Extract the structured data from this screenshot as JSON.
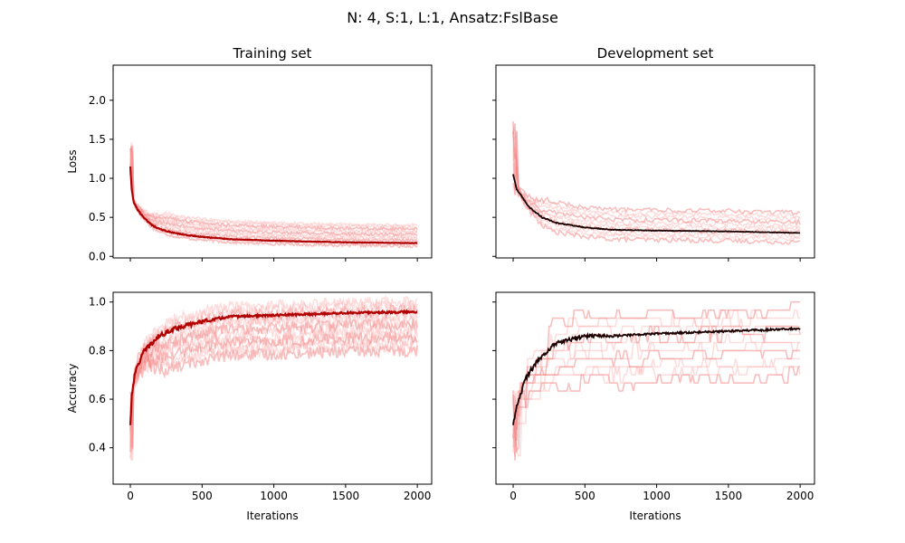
{
  "suptitle": "N: 4, S:1, L:1, Ansatz:FslBase",
  "colors": {
    "run_light": "#f8a0a0",
    "run_medium": "#f07070",
    "mean_train": "#b00000",
    "mean_dev": "#1a0000",
    "frame": "#000000"
  },
  "chart_data": [
    {
      "id": "train-loss",
      "type": "line",
      "title": "Training set",
      "xlabel": "",
      "ylabel": "Loss",
      "xlim": [
        -120,
        2100
      ],
      "ylim": [
        -0.02,
        2.45
      ],
      "xticks": [
        0,
        500,
        1000,
        1500,
        2000
      ],
      "show_xticklabels": false,
      "yticks": [
        0.0,
        0.5,
        1.0,
        1.5,
        2.0
      ],
      "ytick_labels": [
        "0.0",
        "0.5",
        "1.0",
        "1.5",
        "2.0"
      ],
      "runs": 12,
      "runs_end_spread": [
        0.13,
        0.4
      ],
      "mean": {
        "x": [
          0,
          10,
          25,
          50,
          100,
          150,
          200,
          300,
          400,
          500,
          700,
          1000,
          1500,
          2000
        ],
        "y": [
          1.15,
          0.85,
          0.68,
          0.6,
          0.48,
          0.4,
          0.35,
          0.3,
          0.27,
          0.25,
          0.22,
          0.2,
          0.18,
          0.17
        ]
      }
    },
    {
      "id": "dev-loss",
      "type": "line",
      "title": "Development set",
      "xlabel": "",
      "ylabel": "",
      "xlim": [
        -120,
        2100
      ],
      "ylim": [
        -0.02,
        2.45
      ],
      "xticks": [
        0,
        500,
        1000,
        1500,
        2000
      ],
      "show_xticklabels": false,
      "yticks": [
        0.0,
        0.5,
        1.0,
        1.5,
        2.0
      ],
      "ytick_labels": [
        "",
        "",
        "",
        "",
        ""
      ],
      "runs": 10,
      "runs_end_spread": [
        0.18,
        0.56
      ],
      "mean": {
        "x": [
          0,
          25,
          50,
          100,
          200,
          300,
          500,
          700,
          1000,
          1500,
          2000
        ],
        "y": [
          1.05,
          0.85,
          0.8,
          0.65,
          0.5,
          0.43,
          0.37,
          0.34,
          0.33,
          0.32,
          0.3
        ]
      }
    },
    {
      "id": "train-acc",
      "type": "line",
      "title": "",
      "xlabel": "Iterations",
      "ylabel": "Accuracy",
      "xlim": [
        -120,
        2100
      ],
      "ylim": [
        0.25,
        1.04
      ],
      "xticks": [
        0,
        500,
        1000,
        1500,
        2000
      ],
      "xtick_labels": [
        "0",
        "500",
        "1000",
        "1500",
        "2000"
      ],
      "show_xticklabels": true,
      "yticks": [
        0.4,
        0.6,
        0.8,
        1.0
      ],
      "ytick_labels": [
        "0.4",
        "0.6",
        "0.8",
        "1.0"
      ],
      "runs": 12,
      "runs_end_spread": [
        0.8,
        1.0
      ],
      "mean": {
        "x": [
          0,
          10,
          25,
          50,
          100,
          200,
          300,
          500,
          700,
          1000,
          1500,
          2000
        ],
        "y": [
          0.49,
          0.62,
          0.68,
          0.74,
          0.8,
          0.86,
          0.89,
          0.92,
          0.94,
          0.945,
          0.955,
          0.96
        ]
      }
    },
    {
      "id": "dev-acc",
      "type": "line",
      "title": "",
      "xlabel": "Iterations",
      "ylabel": "",
      "xlim": [
        -120,
        2100
      ],
      "ylim": [
        0.25,
        1.04
      ],
      "xticks": [
        0,
        500,
        1000,
        1500,
        2000
      ],
      "xtick_labels": [
        "0",
        "500",
        "1000",
        "1500",
        "2000"
      ],
      "show_xticklabels": true,
      "yticks": [
        0.4,
        0.6,
        0.8,
        1.0
      ],
      "ytick_labels": [
        "",
        "",
        "",
        ""
      ],
      "runs": 10,
      "runs_end_spread": [
        0.7,
        0.97
      ],
      "mean": {
        "x": [
          0,
          25,
          50,
          100,
          200,
          300,
          500,
          700,
          1000,
          1500,
          2000
        ],
        "y": [
          0.49,
          0.58,
          0.62,
          0.7,
          0.78,
          0.83,
          0.86,
          0.86,
          0.87,
          0.88,
          0.89
        ]
      }
    }
  ]
}
